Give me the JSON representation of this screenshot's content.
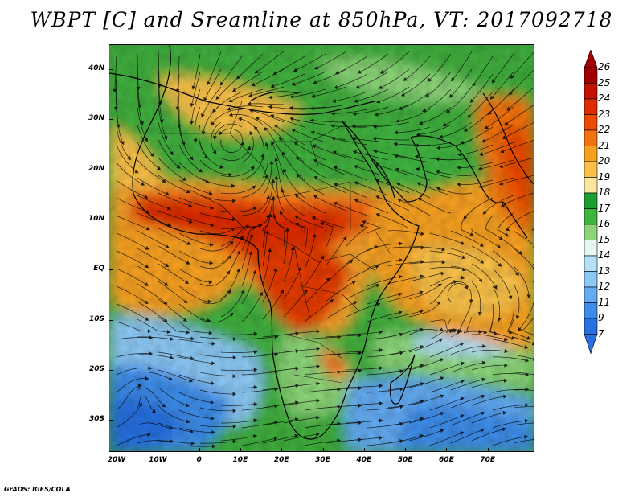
{
  "title": "WBPT [C] and Sreamline at 850hPa, VT: 2017092718",
  "footer": "GrADS: IGES/COLA",
  "map": {
    "lat_labels": [
      "40N",
      "30N",
      "20N",
      "10N",
      "EQ",
      "10S",
      "20S",
      "30S"
    ],
    "lon_labels": [
      "20W",
      "10W",
      "0",
      "10E",
      "20E",
      "30E",
      "40E",
      "50E",
      "60E",
      "70E"
    ]
  },
  "colorbar": {
    "labels": [
      "26",
      "25",
      "24",
      "23",
      "22",
      "21",
      "20",
      "19",
      "18",
      "17",
      "16",
      "15",
      "14",
      "13",
      "12",
      "11",
      "9",
      "7"
    ],
    "colors": [
      "#a00000",
      "#c41200",
      "#dc2c00",
      "#ec4a00",
      "#f27210",
      "#f6a020",
      "#f8c048",
      "#fbe6a0",
      "#1e9e32",
      "#40b440",
      "#8cd478",
      "#e6f8f0",
      "#b4e0f8",
      "#8cc8f4",
      "#64aaf0",
      "#3c8ce8",
      "#2870e0"
    ]
  }
}
